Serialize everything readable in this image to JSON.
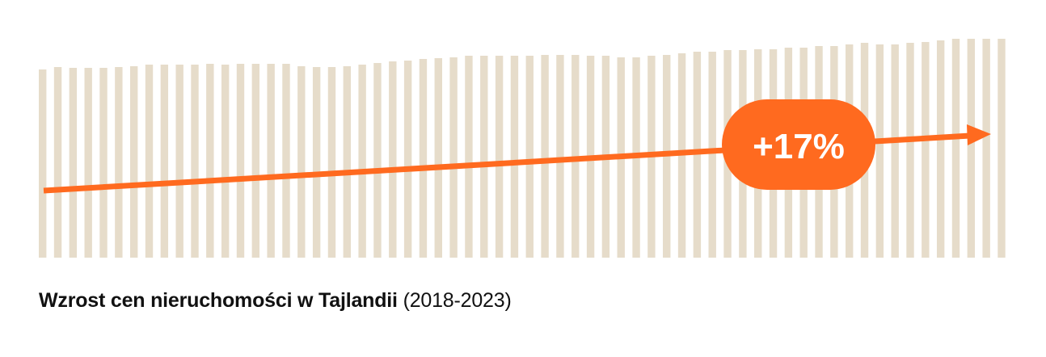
{
  "chart_data": {
    "type": "bar",
    "title": "Wzrost cen nieruchomości w Tajlandii",
    "subtitle": "(2018-2023)",
    "values": [
      233,
      236,
      235,
      235,
      235,
      236,
      237,
      239,
      239,
      239,
      239,
      240,
      239,
      240,
      240,
      240,
      240,
      237,
      236,
      236,
      237,
      239,
      241,
      243,
      244,
      246,
      247,
      248,
      250,
      250,
      250,
      250,
      250,
      251,
      251,
      251,
      250,
      250,
      248,
      248,
      250,
      251,
      253,
      255,
      255,
      257,
      257,
      258,
      258,
      260,
      260,
      262,
      262,
      264,
      266,
      264,
      264,
      266,
      267,
      269,
      271,
      271,
      271,
      271
    ],
    "ylim": [
      0,
      271
    ],
    "grid": false,
    "annotation": {
      "label": "+17%",
      "type": "trend-arrow"
    },
    "colors": {
      "bars": "#E6DCCA",
      "arrow": "#FF6A1F",
      "badge_text": "#FFFFFF",
      "caption": "#111111"
    }
  }
}
